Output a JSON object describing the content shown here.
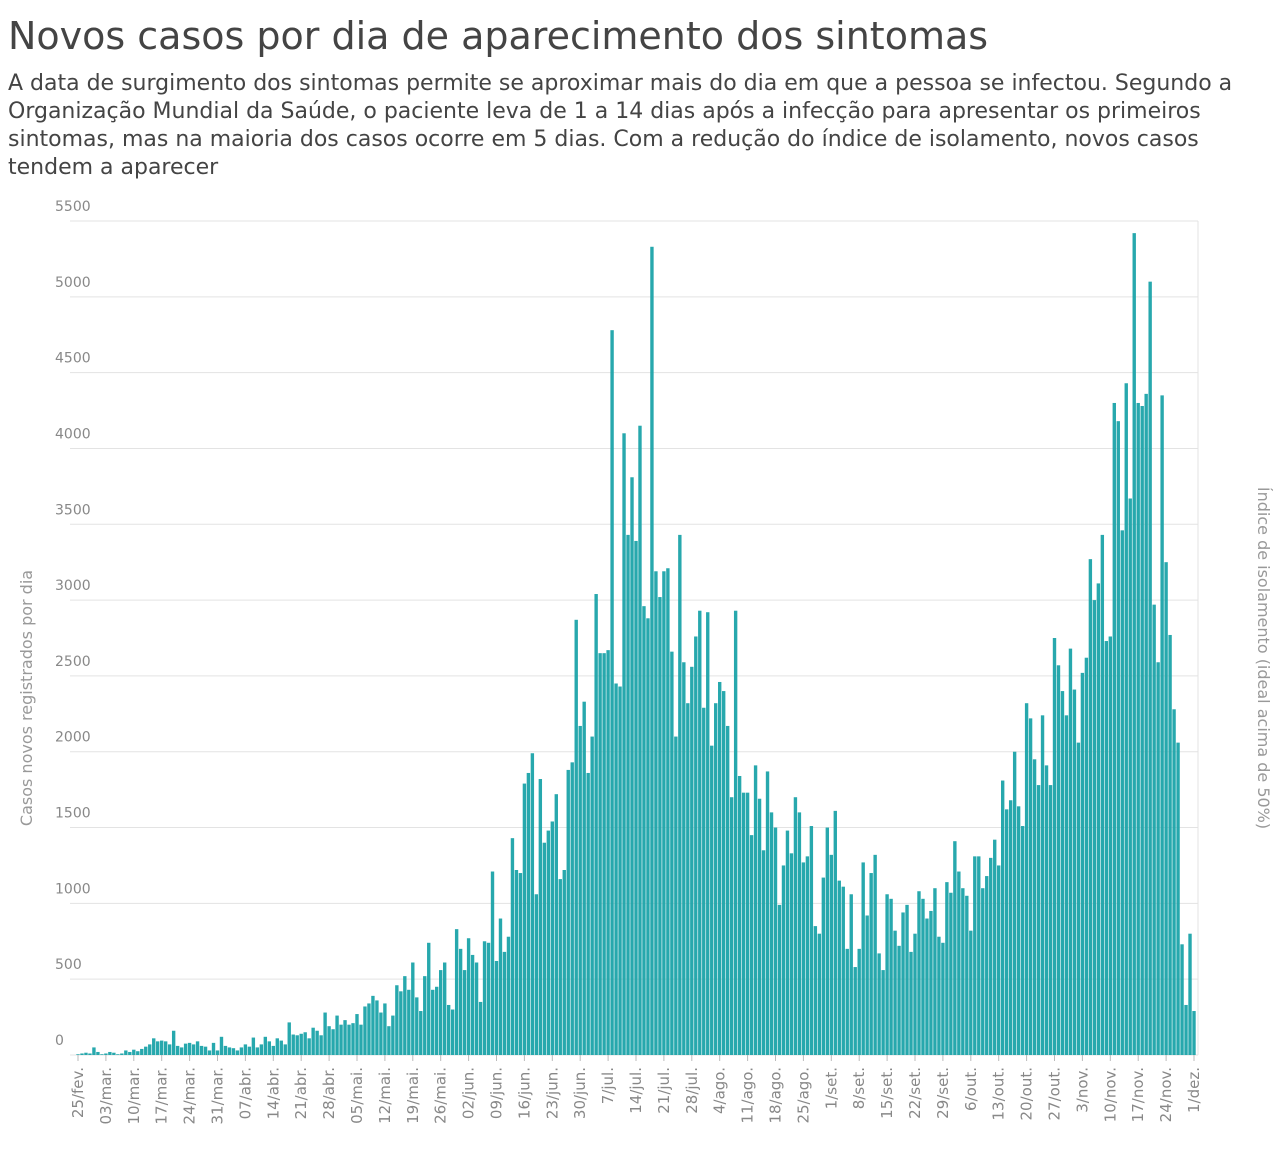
{
  "chart_data": {
    "type": "bar",
    "title": "Novos casos por dia de aparecimento dos sintomas",
    "subtitle": "A data de surgimento dos sintomas permite se aproximar mais do dia em que a pessoa se infectou. Segundo a Organização Mundial da Saúde, o paciente leva de 1 a 14 dias após a infecção para apresentar os primeiros sintomas, mas na maioria dos casos ocorre em 5 dias. Com a redução do índice de isolamento, novos casos tendem a aparecer",
    "y_label": "Casos novos registrados por dia",
    "y2_label": "Índice de isolamento (ideal acima de 50%)",
    "color": "#1ba3a9",
    "grid": true,
    "ylim": [
      0,
      5500
    ],
    "yticks": [
      0,
      500,
      1000,
      1500,
      2000,
      2500,
      3000,
      3500,
      4000,
      4500,
      5000,
      5500
    ],
    "categories": [
      "25/fev.",
      null,
      null,
      null,
      null,
      null,
      null,
      "03/mar.",
      null,
      null,
      null,
      null,
      null,
      null,
      "10/mar.",
      null,
      null,
      null,
      null,
      null,
      null,
      "17/mar.",
      null,
      null,
      null,
      null,
      null,
      null,
      "24/mar.",
      null,
      null,
      null,
      null,
      null,
      null,
      "31/mar.",
      null,
      null,
      null,
      null,
      null,
      null,
      "07/abr.",
      null,
      null,
      null,
      null,
      null,
      null,
      "14/abr.",
      null,
      null,
      null,
      null,
      null,
      null,
      "21/abr.",
      null,
      null,
      null,
      null,
      null,
      null,
      "28/abr.",
      null,
      null,
      null,
      null,
      null,
      null,
      "05/mai.",
      null,
      null,
      null,
      null,
      null,
      null,
      "12/mai.",
      null,
      null,
      null,
      null,
      null,
      null,
      "19/mai.",
      null,
      null,
      null,
      null,
      null,
      null,
      "26/mai.",
      null,
      null,
      null,
      null,
      null,
      null,
      "02/jun.",
      null,
      null,
      null,
      null,
      null,
      null,
      "09/jun.",
      null,
      null,
      null,
      null,
      null,
      null,
      "16/jun.",
      null,
      null,
      null,
      null,
      null,
      null,
      "23/jun.",
      null,
      null,
      null,
      null,
      null,
      null,
      "30/jun.",
      null,
      null,
      null,
      null,
      null,
      null,
      "7/jul.",
      null,
      null,
      null,
      null,
      null,
      null,
      "14/jul.",
      null,
      null,
      null,
      null,
      null,
      null,
      "21/jul.",
      null,
      null,
      null,
      null,
      null,
      null,
      "28/jul.",
      null,
      null,
      null,
      null,
      null,
      null,
      "4/ago.",
      null,
      null,
      null,
      null,
      null,
      null,
      "11/ago.",
      null,
      null,
      null,
      null,
      null,
      null,
      "18/ago.",
      null,
      null,
      null,
      null,
      null,
      null,
      "25/ago.",
      null,
      null,
      null,
      null,
      null,
      null,
      "1/set.",
      null,
      null,
      null,
      null,
      null,
      null,
      "8/set.",
      null,
      null,
      null,
      null,
      null,
      null,
      "15/set.",
      null,
      null,
      null,
      null,
      null,
      null,
      "22/set.",
      null,
      null,
      null,
      null,
      null,
      null,
      "29/set.",
      null,
      null,
      null,
      null,
      null,
      null,
      "6/out.",
      null,
      null,
      null,
      null,
      null,
      null,
      "13/out.",
      null,
      null,
      null,
      null,
      null,
      null,
      "20/out.",
      null,
      null,
      null,
      null,
      null,
      null,
      "27/out.",
      null,
      null,
      null,
      null,
      null,
      null,
      "3/nov.",
      null,
      null,
      null,
      null,
      null,
      null,
      "10/nov.",
      null,
      null,
      null,
      null,
      null,
      null,
      "17/nov.",
      null,
      null,
      null,
      null,
      null,
      null,
      "24/nov.",
      null,
      null,
      null,
      null,
      null,
      null,
      "1/dez."
    ],
    "values": [
      5,
      10,
      15,
      10,
      50,
      20,
      5,
      10,
      20,
      15,
      5,
      10,
      30,
      20,
      35,
      25,
      40,
      55,
      70,
      110,
      90,
      95,
      90,
      70,
      160,
      60,
      50,
      75,
      80,
      70,
      90,
      60,
      55,
      30,
      80,
      30,
      120,
      60,
      50,
      45,
      30,
      50,
      70,
      55,
      115,
      50,
      70,
      120,
      90,
      60,
      110,
      95,
      70,
      215,
      135,
      130,
      140,
      150,
      110,
      180,
      160,
      130,
      280,
      190,
      170,
      260,
      200,
      230,
      200,
      210,
      270,
      200,
      320,
      340,
      390,
      360,
      280,
      340,
      190,
      260,
      460,
      420,
      520,
      430,
      610,
      380,
      290,
      520,
      740,
      430,
      450,
      560,
      610,
      330,
      300,
      830,
      700,
      560,
      770,
      660,
      610,
      350,
      750,
      740,
      1210,
      620,
      900,
      680,
      780,
      1430,
      1220,
      1200,
      1790,
      1860,
      1990,
      1060,
      1820,
      1400,
      1480,
      1540,
      1720,
      1160,
      1220,
      1880,
      1930,
      2870,
      2170,
      2330,
      1860,
      2100,
      3040,
      2650,
      2650,
      2670,
      4780,
      2450,
      2430,
      4100,
      3430,
      3810,
      3390,
      4150,
      2960,
      2880,
      5330,
      3190,
      3020,
      3190,
      3210,
      2660,
      2100,
      3430,
      2590,
      2320,
      2560,
      2760,
      2930,
      2290,
      2920,
      2040,
      2320,
      2460,
      2400,
      2170,
      1700,
      2930,
      1840,
      1730,
      1730,
      1450,
      1910,
      1690,
      1350,
      1870,
      1600,
      1500,
      990,
      1250,
      1480,
      1330,
      1700,
      1600,
      1270,
      1310,
      1510,
      850,
      800,
      1170,
      1500,
      1320,
      1610,
      1150,
      1110,
      700,
      1060,
      580,
      700,
      1270,
      920,
      1200,
      1320,
      670,
      560,
      1060,
      1030,
      820,
      720,
      940,
      990,
      680,
      800,
      1080,
      1030,
      900,
      950,
      1100,
      780,
      740,
      1140,
      1070,
      1410,
      1210,
      1100,
      1050,
      820,
      1310,
      1310,
      1100,
      1180,
      1300,
      1420,
      1250,
      1810,
      1620,
      1680,
      2000,
      1640,
      1510,
      2320,
      2220,
      1950,
      1780,
      2240,
      1910,
      1780,
      2750,
      2570,
      2400,
      2240,
      2680,
      2410,
      2060,
      2520,
      2620,
      3270,
      3000,
      3110,
      3430,
      2730,
      2760,
      4300,
      4180,
      3460,
      4430,
      3670,
      5420,
      4300,
      4280,
      4360,
      5100,
      2970,
      2590,
      4350,
      3250,
      2770,
      2280,
      2060,
      730,
      330,
      800,
      290
    ]
  }
}
